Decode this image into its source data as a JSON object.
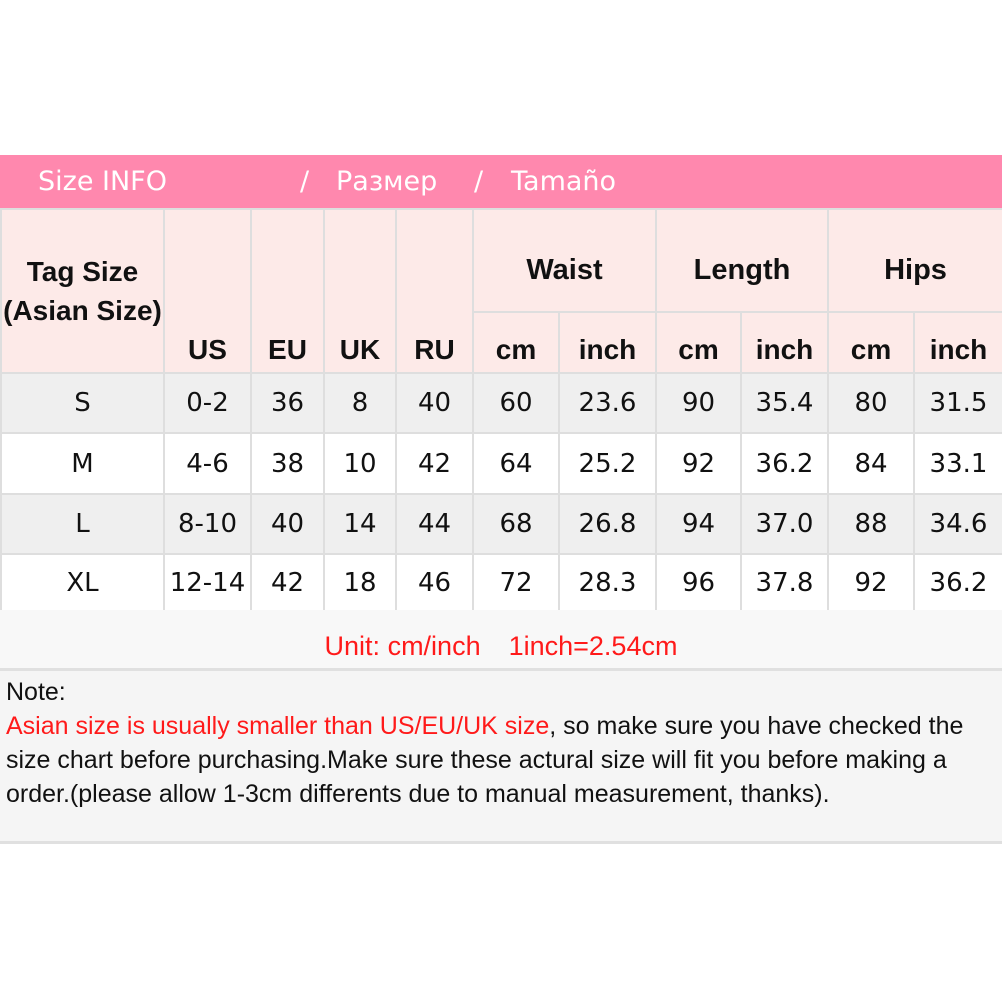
{
  "title": {
    "part1": "Size INFO",
    "sep1": "/",
    "part2": "Размер",
    "sep2": "/",
    "part3": "Tamaño"
  },
  "header": {
    "tag_size": "Tag Size (Asian Size)",
    "us": "US",
    "eu": "EU",
    "uk": "UK",
    "ru": "RU",
    "groups": [
      "Waist",
      "Length",
      "Hips"
    ],
    "sub": [
      "cm",
      "inch",
      "cm",
      "inch",
      "cm",
      "inch"
    ]
  },
  "rows": [
    [
      "S",
      "0-2",
      "36",
      "8",
      "40",
      "60",
      "23.6",
      "90",
      "35.4",
      "80",
      "31.5"
    ],
    [
      "M",
      "4-6",
      "38",
      "10",
      "42",
      "64",
      "25.2",
      "92",
      "36.2",
      "84",
      "33.1"
    ],
    [
      "L",
      "8-10",
      "40",
      "14",
      "44",
      "68",
      "26.8",
      "94",
      "37.0",
      "88",
      "34.6"
    ],
    [
      "XL",
      "12-14",
      "42",
      "18",
      "46",
      "72",
      "28.3",
      "96",
      "37.8",
      "92",
      "36.2"
    ]
  ],
  "unit": {
    "label": "Unit: cm/inch",
    "conversion": "1inch=2.54cm"
  },
  "note": {
    "heading": "Note:",
    "highlight": "Asian size is usually smaller than US/EU/UK size",
    "body": ", so make sure you have checked the size chart before purchasing.Make sure these actural size will fit you before making a order.(please allow 1-3cm differents due to manual measurement, thanks)."
  },
  "colors": {
    "title_bg": "#ff88ae",
    "header_bg": "#fdeae8",
    "alt_row": "#efefef",
    "accent_red": "#ff1a1a"
  }
}
